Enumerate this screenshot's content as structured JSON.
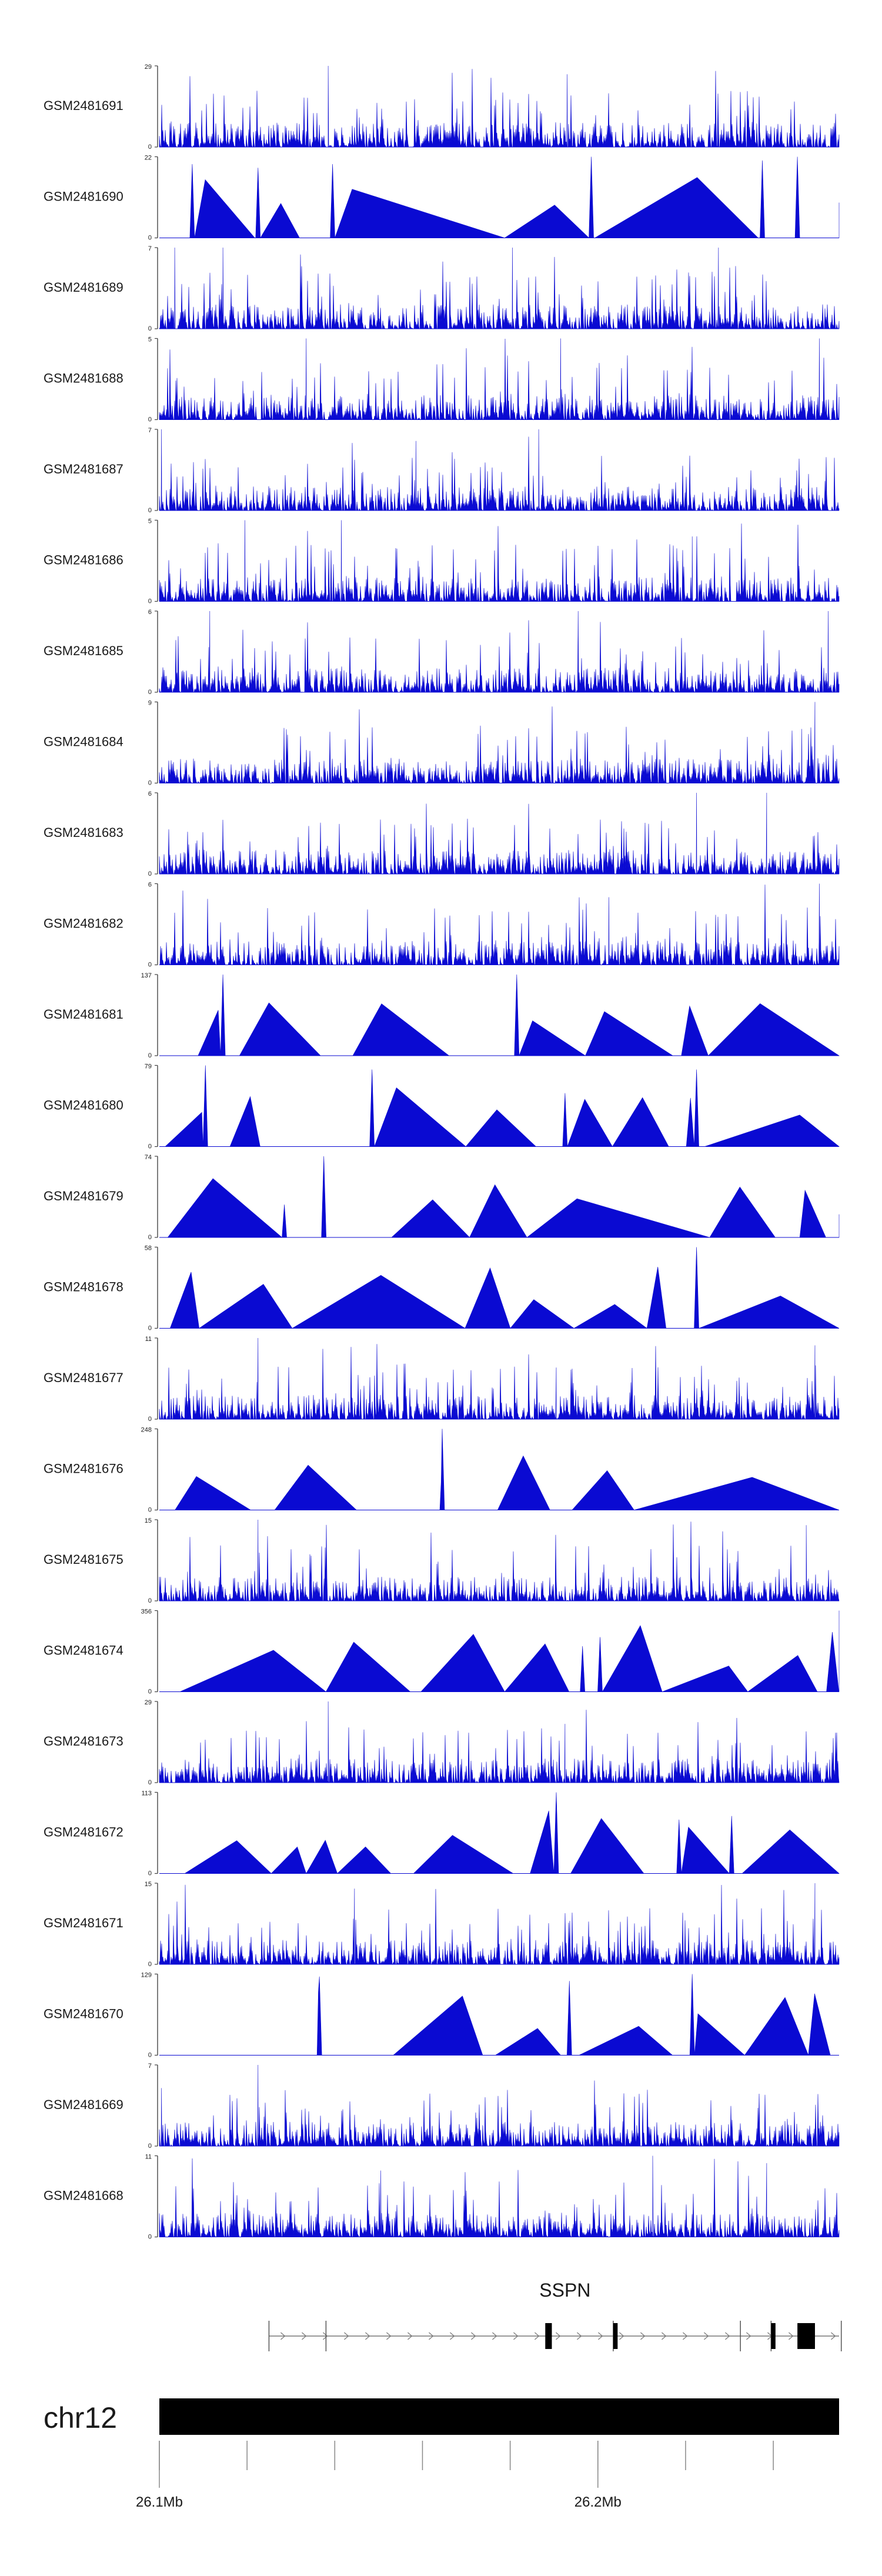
{
  "chart_data": {
    "type": "area",
    "title": "",
    "color_signal": "#0a0ad2",
    "color_axis": "#444444",
    "color_black": "#000000",
    "genome": {
      "chromosome": "chr12",
      "range_mb": [
        26.1,
        26.255
      ],
      "tick_labels": [
        {
          "pos": 26.1,
          "label": "26.1Mb"
        },
        {
          "pos": 26.2,
          "label": "26.2Mb"
        }
      ],
      "minor_ticks": [
        26.1,
        26.12,
        26.14,
        26.16,
        26.18,
        26.2,
        26.22,
        26.24
      ]
    },
    "gene": {
      "name": "SSPN",
      "start_mb": 26.125,
      "end_mb": 26.255,
      "exons": [
        [
          26.188,
          26.1895
        ],
        [
          26.2035,
          26.2045
        ],
        [
          26.2395,
          26.2405
        ],
        [
          26.2455,
          26.2495
        ]
      ],
      "markers": [
        26.125,
        26.138,
        26.2035,
        26.2325,
        26.2395,
        26.2555
      ]
    },
    "tracks": [
      {
        "name": "GSM2481691",
        "ymax": 29,
        "style": "dense",
        "peaks": [
          [
            26.1385,
            29
          ],
          [
            26.193,
            26
          ]
        ]
      },
      {
        "name": "GSM2481690",
        "ymax": 22,
        "style": "sparse",
        "peaks": [
          [
            26.1075,
            20
          ],
          [
            26.1225,
            19
          ],
          [
            26.1395,
            20
          ],
          [
            26.1985,
            22
          ],
          [
            26.2375,
            21
          ],
          [
            26.2455,
            22
          ]
        ]
      },
      {
        "name": "GSM2481689",
        "ymax": 7,
        "style": "dense",
        "peaks": [
          [
            26.1035,
            7
          ],
          [
            26.1145,
            7
          ],
          [
            26.1805,
            7
          ],
          [
            26.2275,
            7
          ]
        ]
      },
      {
        "name": "GSM2481688",
        "ymax": 5,
        "style": "dense",
        "peaks": [
          [
            26.1335,
            5
          ],
          [
            26.1915,
            5
          ],
          [
            26.2505,
            5
          ]
        ]
      },
      {
        "name": "GSM2481687",
        "ymax": 7,
        "style": "dense",
        "peaks": [
          [
            26.1005,
            7
          ],
          [
            26.1585,
            6
          ],
          [
            26.1865,
            7
          ]
        ]
      },
      {
        "name": "GSM2481686",
        "ymax": 5,
        "style": "dense",
        "peaks": [
          [
            26.1195,
            5
          ],
          [
            26.1415,
            5
          ],
          [
            26.2215,
            4
          ]
        ]
      },
      {
        "name": "GSM2481685",
        "ymax": 6,
        "style": "dense",
        "peaks": [
          [
            26.1115,
            6
          ],
          [
            26.1955,
            6
          ],
          [
            26.2525,
            6
          ]
        ]
      },
      {
        "name": "GSM2481684",
        "ymax": 9,
        "style": "dense",
        "peaks": [
          [
            26.2495,
            9
          ],
          [
            26.2465,
            6
          ]
        ]
      },
      {
        "name": "GSM2481683",
        "ymax": 6,
        "style": "dense",
        "peaks": [
          [
            26.2225,
            6
          ],
          [
            26.2385,
            6
          ]
        ]
      },
      {
        "name": "GSM2481682",
        "ymax": 6,
        "style": "dense",
        "peaks": [
          [
            26.2505,
            6
          ],
          [
            26.2025,
            5
          ]
        ]
      },
      {
        "name": "GSM2481681",
        "ymax": 137,
        "style": "sparse",
        "peaks": [
          [
            26.1145,
            137
          ],
          [
            26.1815,
            137
          ]
        ]
      },
      {
        "name": "GSM2481680",
        "ymax": 79,
        "style": "sparse",
        "peaks": [
          [
            26.1105,
            79
          ],
          [
            26.1485,
            75
          ],
          [
            26.2225,
            75
          ],
          [
            26.1925,
            52
          ]
        ]
      },
      {
        "name": "GSM2481679",
        "ymax": 74,
        "style": "sparse",
        "peaks": [
          [
            26.1375,
            74
          ],
          [
            26.1285,
            30
          ]
        ]
      },
      {
        "name": "GSM2481678",
        "ymax": 58,
        "style": "sparse",
        "peaks": [
          [
            26.2225,
            58
          ]
        ]
      },
      {
        "name": "GSM2481677",
        "ymax": 11,
        "style": "dense",
        "peaks": [
          [
            26.1225,
            11
          ],
          [
            26.2495,
            10
          ],
          [
            26.1905,
            7
          ]
        ]
      },
      {
        "name": "GSM2481676",
        "ymax": 248,
        "style": "sparse",
        "peaks": [
          [
            26.1645,
            248
          ]
        ]
      },
      {
        "name": "GSM2481675",
        "ymax": 15,
        "style": "dense",
        "peaks": [
          [
            26.1225,
            15
          ],
          [
            26.2475,
            14
          ]
        ]
      },
      {
        "name": "GSM2481674",
        "ymax": 356,
        "style": "sparse",
        "peaks": [
          [
            26.2555,
            356
          ],
          [
            26.2005,
            240
          ],
          [
            26.1965,
            200
          ]
        ]
      },
      {
        "name": "GSM2481673",
        "ymax": 29,
        "style": "dense",
        "peaks": [
          [
            26.1385,
            29
          ],
          [
            26.1925,
            21
          ]
        ]
      },
      {
        "name": "GSM2481672",
        "ymax": 113,
        "style": "sparse",
        "peaks": [
          [
            26.1905,
            113
          ],
          [
            26.2185,
            75
          ],
          [
            26.2305,
            80
          ]
        ]
      },
      {
        "name": "GSM2481671",
        "ymax": 15,
        "style": "dense",
        "peaks": [
          [
            26.1445,
            14
          ],
          [
            26.2495,
            15
          ]
        ]
      },
      {
        "name": "GSM2481670",
        "ymax": 129,
        "style": "sparse",
        "peaks": [
          [
            26.2215,
            129
          ],
          [
            26.1365,
            125
          ],
          [
            26.1935,
            118
          ]
        ]
      },
      {
        "name": "GSM2481669",
        "ymax": 7,
        "style": "dense",
        "peaks": [
          [
            26.1225,
            7
          ],
          [
            26.1005,
            5
          ]
        ]
      },
      {
        "name": "GSM2481668",
        "ymax": 11,
        "style": "dense",
        "peaks": [
          [
            26.2125,
            11
          ],
          [
            26.2385,
            10
          ],
          [
            26.1505,
            9
          ]
        ]
      }
    ]
  }
}
